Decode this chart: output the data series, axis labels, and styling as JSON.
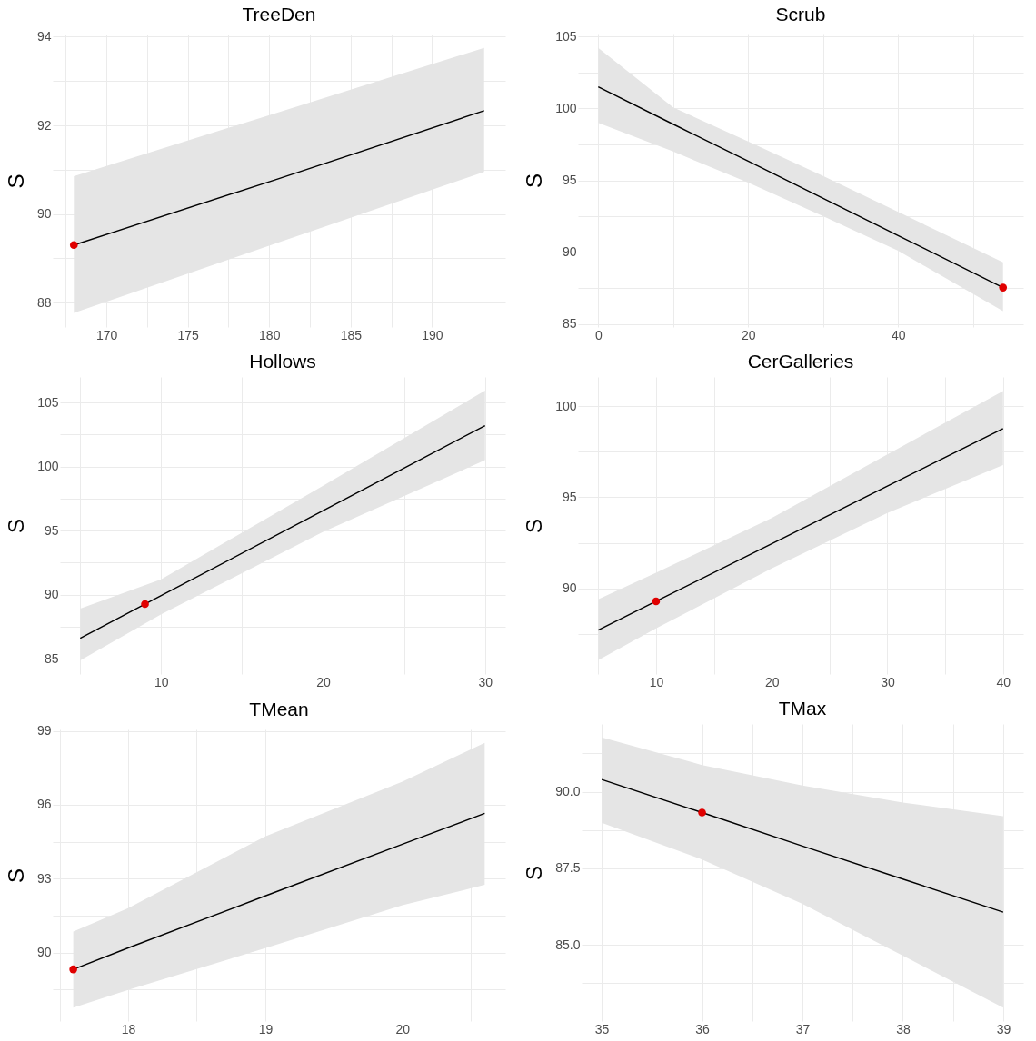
{
  "chart_data": [
    {
      "type": "line",
      "title": "TreeDen",
      "ylabel": "S",
      "grid": true,
      "xlim": [
        166.7,
        194.5
      ],
      "ylim": [
        87.45,
        94.05
      ],
      "xticks": [
        {
          "value": 167.5,
          "label": null
        },
        170,
        {
          "value": 172.5,
          "label": null
        },
        175,
        {
          "value": 177.5,
          "label": null
        },
        180,
        {
          "value": 182.5,
          "label": null
        },
        185,
        {
          "value": 187.5,
          "label": null
        },
        190,
        {
          "value": 192.5,
          "label": null
        }
      ],
      "yticks": [
        88,
        {
          "value": 89,
          "label": null
        },
        90,
        {
          "value": 91,
          "label": null
        },
        92,
        {
          "value": 93,
          "label": null
        },
        94
      ],
      "series": [
        {
          "color": "#000000",
          "x": [
            168,
            180.6,
            193.2
          ],
          "values": [
            89.3,
            90.8,
            92.33
          ],
          "lower": [
            87.77,
            89.36,
            90.95
          ],
          "upper": [
            90.85,
            92.3,
            93.75
          ]
        },
        {
          "type": "scatter",
          "color": "#e00000",
          "x": [
            168
          ],
          "values": [
            89.3
          ]
        }
      ]
    },
    {
      "type": "line",
      "title": "Scrub",
      "ylabel": "S",
      "grid": true,
      "xlim": [
        -2.7,
        56.7
      ],
      "ylim": [
        84.8,
        105.2
      ],
      "xticks": [
        0,
        {
          "value": 10,
          "label": null
        },
        20,
        {
          "value": 30,
          "label": null
        },
        40,
        {
          "value": 50,
          "label": null
        }
      ],
      "yticks": [
        85,
        {
          "value": 87.5,
          "label": null
        },
        90,
        {
          "value": 92.5,
          "label": null
        },
        95,
        {
          "value": 97.5,
          "label": null
        },
        100,
        {
          "value": 102.5,
          "label": null
        },
        105
      ],
      "series": [
        {
          "color": "#000000",
          "x": [
            0,
            10,
            20,
            30,
            40,
            54
          ],
          "values": [
            101.5,
            98.9,
            96.33,
            93.74,
            91.16,
            87.54
          ],
          "lower": [
            99.0,
            97.0,
            94.84,
            92.5,
            90.1,
            85.9
          ],
          "upper": [
            104.2,
            100.07,
            97.7,
            95.3,
            92.8,
            89.3
          ]
        },
        {
          "type": "scatter",
          "color": "#e00000",
          "x": [
            54
          ],
          "values": [
            87.54
          ]
        }
      ]
    },
    {
      "type": "line",
      "title": "Hollows",
      "ylabel": "S",
      "grid": true,
      "xlim": [
        3.75,
        31.25
      ],
      "ylim": [
        83.8,
        107
      ],
      "xticks": [
        {
          "value": 5,
          "label": null
        },
        10,
        {
          "value": 15,
          "label": null
        },
        20,
        {
          "value": 25,
          "label": null
        },
        30
      ],
      "yticks": [
        85,
        {
          "value": 87.5,
          "label": null
        },
        90,
        {
          "value": 92.5,
          "label": null
        },
        95,
        {
          "value": 97.5,
          "label": null
        },
        100,
        {
          "value": 102.5,
          "label": null
        },
        105
      ],
      "series": [
        {
          "color": "#000000",
          "x": [
            5,
            10,
            20,
            30
          ],
          "values": [
            86.6,
            89.92,
            96.56,
            103.2
          ],
          "lower": [
            84.86,
            88.47,
            94.9,
            100.5
          ],
          "upper": [
            88.9,
            91.2,
            98.5,
            105.94
          ]
        },
        {
          "type": "scatter",
          "color": "#e00000",
          "x": [
            9
          ],
          "values": [
            89.26
          ]
        }
      ]
    },
    {
      "type": "line",
      "title": "CerGalleries",
      "ylabel": "S",
      "grid": true,
      "xlim": [
        3.25,
        41.75
      ],
      "ylim": [
        85.3,
        101.6
      ],
      "xticks": [
        {
          "value": 5,
          "label": null
        },
        10,
        {
          "value": 15,
          "label": null
        },
        20,
        {
          "value": 25,
          "label": null
        },
        30,
        {
          "value": 35,
          "label": null
        },
        40
      ],
      "yticks": [
        {
          "value": 87.5,
          "label": null
        },
        90,
        {
          "value": 92.5,
          "label": null
        },
        95,
        {
          "value": 97.5,
          "label": null
        },
        100
      ],
      "series": [
        {
          "color": "#000000",
          "x": [
            5,
            10,
            20,
            30,
            40
          ],
          "values": [
            87.71,
            89.29,
            92.45,
            95.61,
            98.77
          ],
          "lower": [
            86.06,
            87.8,
            91.1,
            94.14,
            96.77
          ],
          "upper": [
            89.4,
            90.86,
            93.86,
            97.35,
            100.83
          ]
        },
        {
          "type": "scatter",
          "color": "#e00000",
          "x": [
            10
          ],
          "values": [
            89.29
          ]
        }
      ]
    },
    {
      "type": "line",
      "title": "TMean",
      "ylabel": "S",
      "grid": true,
      "xlim": [
        17.45,
        20.75
      ],
      "ylim": [
        87.22,
        99.06
      ],
      "xticks": [
        {
          "value": 17.5,
          "label": null
        },
        18,
        {
          "value": 18.5,
          "label": null
        },
        19,
        {
          "value": 19.5,
          "label": null
        },
        20,
        {
          "value": 20.5,
          "label": null
        }
      ],
      "yticks": [
        {
          "value": 88.5,
          "label": null
        },
        90,
        {
          "value": 91.5,
          "label": null
        },
        93,
        {
          "value": 94.5,
          "label": null
        },
        96,
        {
          "value": 97.5,
          "label": null
        },
        99
      ],
      "series": [
        {
          "color": "#000000",
          "x": [
            17.6,
            18,
            19,
            20,
            20.6
          ],
          "values": [
            89.32,
            90.19,
            92.3,
            94.4,
            95.65
          ],
          "lower": [
            87.76,
            88.48,
            90.18,
            91.92,
            92.75
          ],
          "upper": [
            90.85,
            91.8,
            94.72,
            96.94,
            98.52
          ]
        },
        {
          "type": "scatter",
          "color": "#e00000",
          "x": [
            17.6
          ],
          "values": [
            89.32
          ]
        }
      ]
    },
    {
      "type": "line",
      "title": "TMax",
      "ylabel": "S",
      "grid": true,
      "xlim": [
        34.8,
        39.2
      ],
      "ylim": [
        82.52,
        92.21
      ],
      "xticks": [
        35,
        {
          "value": 35.5,
          "label": null
        },
        36,
        {
          "value": 36.5,
          "label": null
        },
        37,
        {
          "value": 37.5,
          "label": null
        },
        38,
        {
          "value": 38.5,
          "label": null
        },
        39
      ],
      "yticks": [
        {
          "value": 83.75,
          "label": null
        },
        {
          "value": 85,
          "label": "85.0"
        },
        {
          "value": 86.25,
          "label": null
        },
        {
          "value": 87.5,
          "label": "87.5"
        },
        {
          "value": 88.75,
          "label": null
        },
        {
          "value": 90,
          "label": "90.0"
        },
        {
          "value": 91.25,
          "label": null
        }
      ],
      "series": [
        {
          "color": "#000000",
          "x": [
            35,
            36,
            37,
            38,
            39
          ],
          "values": [
            90.4,
            89.32,
            88.23,
            87.15,
            86.07
          ],
          "lower": [
            88.99,
            87.79,
            86.34,
            84.65,
            82.96
          ],
          "upper": [
            91.77,
            90.87,
            90.2,
            89.65,
            89.2
          ]
        },
        {
          "type": "scatter",
          "color": "#e00000",
          "x": [
            36
          ],
          "values": [
            89.32
          ]
        }
      ]
    }
  ]
}
